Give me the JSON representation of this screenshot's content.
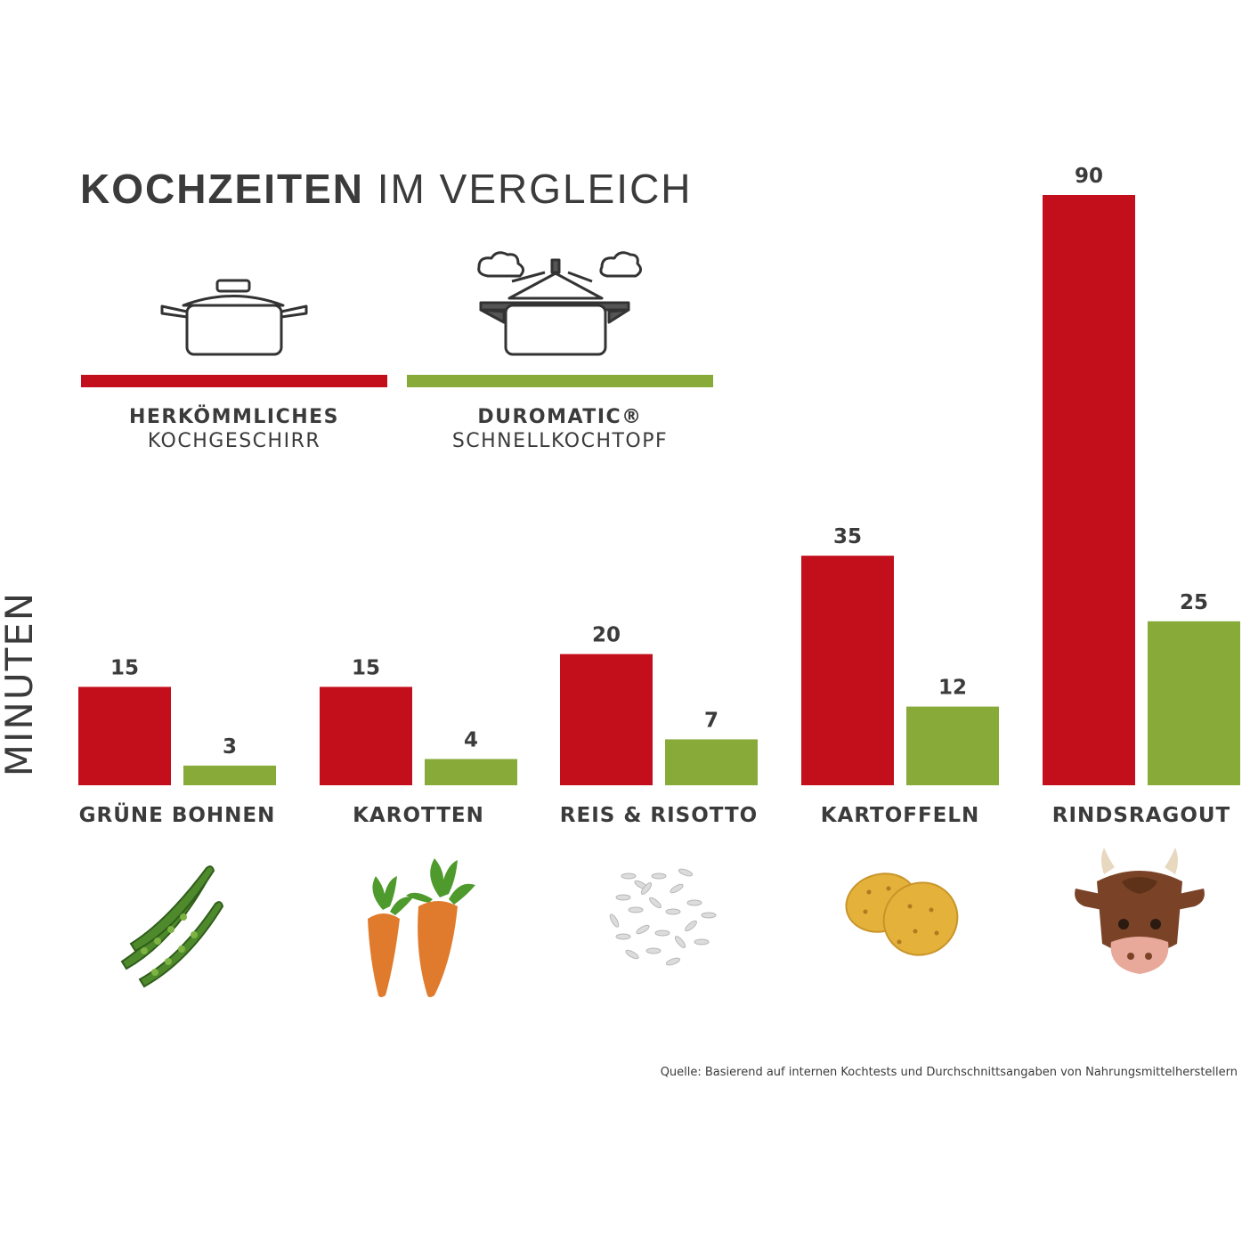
{
  "chart_data": {
    "type": "bar",
    "title_bold": "KOCHZEITEN",
    "title_rest": " IM VERGLEICH",
    "ylabel": "MINUTEN",
    "categories": [
      "GRÜNE BOHNEN",
      "KAROTTEN",
      "REIS & RISOTTO",
      "KARTOFFELN",
      "RINDSRAGOUT"
    ],
    "series": [
      {
        "name_line1": "HERKÖMMLICHES",
        "name_line2": "KOCHGESCHIRR",
        "color": "#c30e1c",
        "values": [
          15,
          15,
          20,
          35,
          90
        ]
      },
      {
        "name_line1": "DUROMATIC®",
        "name_line2": "SCHNELLKOCHTOPF",
        "color": "#88aa38",
        "values": [
          3,
          4,
          7,
          12,
          25
        ]
      }
    ],
    "ylim": [
      0,
      90
    ],
    "grid": false,
    "legend": "top-left",
    "category_icons": [
      "green-beans-icon",
      "carrots-icon",
      "rice-icon",
      "potatoes-icon",
      "cow-icon"
    ],
    "source": "Quelle: Basierend auf internen Kochtests und Durchschnittsangaben von Nahrungsmittelherstellern"
  }
}
